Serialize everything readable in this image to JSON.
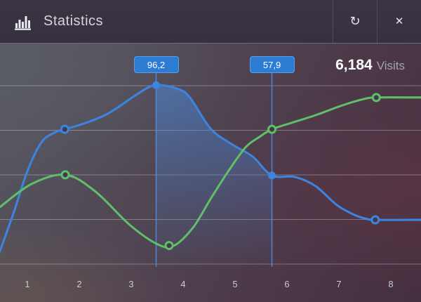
{
  "header": {
    "title": "Statistics",
    "icons": {
      "bar_chart": "bar-chart",
      "refresh": "↻",
      "close": "✕"
    }
  },
  "stats": {
    "visits_value": "6,184",
    "visits_label": "Visits"
  },
  "colors": {
    "accent_blue": "#3d84e0",
    "accent_green": "#5fbf6a",
    "tooltip_bg": "#2d7cd4",
    "grid_line": "rgba(255,255,255,0.30)",
    "ref_line": "#4e8ee2",
    "marker_fill": "#443a47",
    "area_fill": "#488be3"
  },
  "chart_data": {
    "type": "line",
    "title": "Statistics",
    "xlabel": "",
    "ylabel": "",
    "x_tick_labels": [
      "1",
      "2",
      "3",
      "4",
      "5",
      "6",
      "7",
      "8"
    ],
    "grid": "horizontal-only",
    "legend": "none",
    "series": [
      {
        "name": "blue",
        "color": "#3d84e0",
        "points": [
          [
            0.47,
            25.7
          ],
          [
            0.74,
            42.4
          ],
          [
            1.01,
            60.3
          ],
          [
            1.28,
            72.2
          ],
          [
            1.55,
            76.4
          ],
          [
            1.72,
            77.5
          ],
          [
            2.16,
            80.5
          ],
          [
            2.57,
            84.4
          ],
          [
            3.04,
            91.3
          ],
          [
            3.34,
            95.4
          ],
          [
            3.55,
            96.3
          ],
          [
            3.88,
            94.8
          ],
          [
            4.12,
            91.3
          ],
          [
            4.53,
            77.8
          ],
          [
            4.93,
            71.3
          ],
          [
            5.34,
            65.9
          ],
          [
            5.71,
            57.9
          ],
          [
            6.15,
            57.3
          ],
          [
            6.55,
            53.4
          ],
          [
            6.96,
            45.4
          ],
          [
            7.3,
            41.2
          ],
          [
            7.5,
            39.7
          ],
          [
            7.7,
            39.1
          ],
          [
            8.58,
            39.1
          ]
        ]
      },
      {
        "name": "green",
        "color": "#5fbf6a",
        "points": [
          [
            0.47,
            44.5
          ],
          [
            1.08,
            54.3
          ],
          [
            1.73,
            58.2
          ],
          [
            2.3,
            51.3
          ],
          [
            2.97,
            37.0
          ],
          [
            3.51,
            28.7
          ],
          [
            3.82,
            28.1
          ],
          [
            4.19,
            35.8
          ],
          [
            4.53,
            48.0
          ],
          [
            4.86,
            59.4
          ],
          [
            5.2,
            69.8
          ],
          [
            5.47,
            74.3
          ],
          [
            5.71,
            77.5
          ],
          [
            6.08,
            80.2
          ],
          [
            6.55,
            83.5
          ],
          [
            7.03,
            87.4
          ],
          [
            7.43,
            90.1
          ],
          [
            7.72,
            91.0
          ],
          [
            8.58,
            91.0
          ]
        ]
      }
    ],
    "markers": [
      {
        "series": "blue",
        "x": 1.72,
        "value": 77.5,
        "style": "open"
      },
      {
        "series": "blue",
        "x": 3.48,
        "value": 96.2,
        "style": "filled"
      },
      {
        "series": "blue",
        "x": 5.71,
        "value": 57.9,
        "style": "filled"
      },
      {
        "series": "blue",
        "x": 7.7,
        "value": 39.1,
        "style": "open"
      },
      {
        "series": "green",
        "x": 1.73,
        "value": 58.2,
        "style": "open"
      },
      {
        "series": "green",
        "x": 3.73,
        "value": 28.2,
        "style": "open"
      },
      {
        "series": "green",
        "x": 5.71,
        "value": 77.5,
        "style": "open"
      },
      {
        "series": "green",
        "x": 7.72,
        "value": 91.0,
        "style": "open"
      }
    ],
    "highlights": [
      {
        "x": 3.48,
        "label": "96,2"
      },
      {
        "x": 5.71,
        "label": "57,9"
      }
    ],
    "fill_between": {
      "series": "blue",
      "from_x": 3.48,
      "to_x": 5.71
    }
  }
}
